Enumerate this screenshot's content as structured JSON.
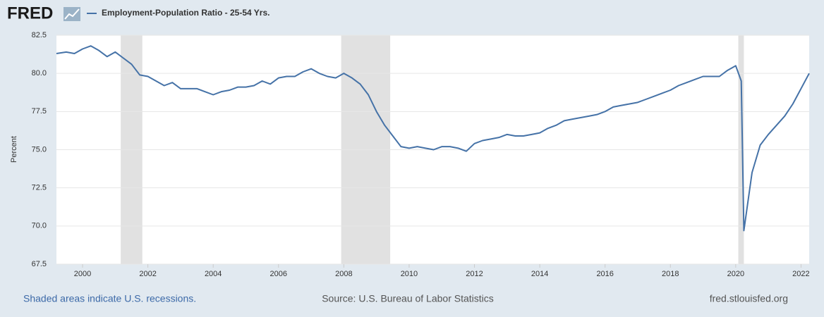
{
  "brand": "FRED",
  "chart_data": {
    "type": "line",
    "y_label": "Percent",
    "x": [
      1999.2,
      1999.5,
      1999.75,
      2000.0,
      2000.25,
      2000.5,
      2000.75,
      2001.0,
      2001.25,
      2001.5,
      2001.75,
      2002.0,
      2002.25,
      2002.5,
      2002.75,
      2003.0,
      2003.25,
      2003.5,
      2003.75,
      2004.0,
      2004.25,
      2004.5,
      2004.75,
      2005.0,
      2005.25,
      2005.5,
      2005.75,
      2006.0,
      2006.25,
      2006.5,
      2006.75,
      2007.0,
      2007.25,
      2007.5,
      2007.75,
      2008.0,
      2008.25,
      2008.5,
      2008.75,
      2009.0,
      2009.25,
      2009.5,
      2009.75,
      2010.0,
      2010.25,
      2010.5,
      2010.75,
      2011.0,
      2011.25,
      2011.5,
      2011.75,
      2012.0,
      2012.25,
      2012.5,
      2012.75,
      2013.0,
      2013.25,
      2013.5,
      2013.75,
      2014.0,
      2014.25,
      2014.5,
      2014.75,
      2015.0,
      2015.25,
      2015.5,
      2015.75,
      2016.0,
      2016.25,
      2016.5,
      2016.75,
      2017.0,
      2017.25,
      2017.5,
      2017.75,
      2018.0,
      2018.25,
      2018.5,
      2018.75,
      2019.0,
      2019.25,
      2019.5,
      2019.75,
      2020.0,
      2020.17,
      2020.25,
      2020.5,
      2020.75,
      2021.0,
      2021.25,
      2021.5,
      2021.75,
      2022.0,
      2022.25
    ],
    "series": [
      {
        "name": "Employment-Population Ratio - 25-54 Yrs.",
        "color": "#4572a7",
        "values": [
          81.3,
          81.4,
          81.3,
          81.6,
          81.8,
          81.5,
          81.1,
          81.4,
          81.0,
          80.6,
          79.9,
          79.8,
          79.5,
          79.2,
          79.4,
          79.0,
          79.0,
          79.0,
          78.8,
          78.6,
          78.8,
          78.9,
          79.1,
          79.1,
          79.2,
          79.5,
          79.3,
          79.7,
          79.8,
          79.8,
          80.1,
          80.3,
          80.0,
          79.8,
          79.7,
          80.0,
          79.7,
          79.3,
          78.6,
          77.5,
          76.6,
          75.9,
          75.2,
          75.1,
          75.2,
          75.1,
          75.0,
          75.2,
          75.2,
          75.1,
          74.9,
          75.4,
          75.6,
          75.7,
          75.8,
          76.0,
          75.9,
          75.9,
          76.0,
          76.1,
          76.4,
          76.6,
          76.9,
          77.0,
          77.1,
          77.2,
          77.3,
          77.5,
          77.8,
          77.9,
          78.0,
          78.1,
          78.3,
          78.5,
          78.7,
          78.9,
          79.2,
          79.4,
          79.6,
          79.8,
          79.8,
          79.8,
          80.2,
          80.5,
          79.5,
          69.7,
          73.5,
          75.3,
          76.0,
          76.6,
          77.2,
          78.0,
          79.0,
          80.0
        ]
      }
    ],
    "recessions": [
      [
        2001.17,
        2001.83
      ],
      [
        2007.92,
        2009.42
      ],
      [
        2020.08,
        2020.25
      ]
    ],
    "xlim": [
      1999.2,
      2022.25
    ],
    "xticks": [
      2000,
      2002,
      2004,
      2006,
      2008,
      2010,
      2012,
      2014,
      2016,
      2018,
      2020,
      2022
    ],
    "ylim": [
      67.5,
      82.5
    ],
    "yticks": [
      67.5,
      {
        "value": 70,
        "label": "70.0"
      },
      72.5,
      {
        "value": 75,
        "label": "75.0"
      },
      77.5,
      {
        "value": 80,
        "label": "80.0"
      },
      82.5
    ],
    "grid": true,
    "recession_color": "#e1e1e1"
  },
  "footer": {
    "left": "Shaded areas indicate U.S. recessions.",
    "center": "Source: U.S. Bureau of Labor Statistics",
    "right": "fred.stlouisfed.org"
  }
}
